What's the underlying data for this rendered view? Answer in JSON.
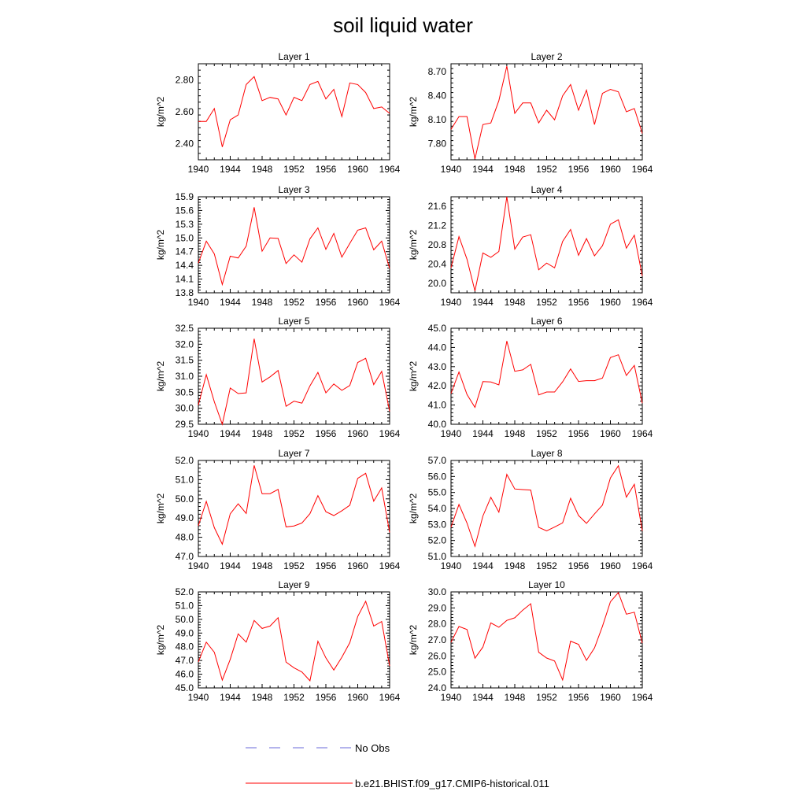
{
  "figure": {
    "title": "soil liquid water"
  },
  "legend": [
    {
      "label": "No Obs",
      "color": "#6a6ad8",
      "style": "dashed"
    },
    {
      "label": "b.e21.BHIST.f09_g17.CMIP6-historical.011",
      "color": "#ff0000",
      "style": "solid"
    }
  ],
  "chart_data": [
    {
      "type": "line",
      "title": "Layer 1",
      "ylabel": "kg/m^2",
      "xlim": [
        1940,
        1964
      ],
      "xticks": [
        1940,
        1944,
        1948,
        1952,
        1956,
        1960,
        1964
      ],
      "ylim": [
        2.3,
        2.9
      ],
      "yticks": [
        2.4,
        2.6,
        2.8
      ],
      "ytick_labels": [
        "2.40",
        "2.60",
        "2.80"
      ],
      "x": [
        1940,
        1941,
        1942,
        1943,
        1944,
        1945,
        1946,
        1947,
        1948,
        1949,
        1950,
        1951,
        1952,
        1953,
        1954,
        1955,
        1956,
        1957,
        1958,
        1959,
        1960,
        1961,
        1962,
        1963,
        1964
      ],
      "series": [
        {
          "name": "b.e21.BHIST.f09_g17.CMIP6-historical.011",
          "color": "#ff0000",
          "values": [
            2.54,
            2.54,
            2.62,
            2.38,
            2.55,
            2.58,
            2.77,
            2.82,
            2.67,
            2.69,
            2.68,
            2.58,
            2.69,
            2.67,
            2.77,
            2.79,
            2.68,
            2.74,
            2.57,
            2.78,
            2.77,
            2.72,
            2.62,
            2.63,
            2.59
          ]
        }
      ]
    },
    {
      "type": "line",
      "title": "Layer 2",
      "ylabel": "kg/m^2",
      "xlim": [
        1940,
        1964
      ],
      "xticks": [
        1940,
        1944,
        1948,
        1952,
        1956,
        1960,
        1964
      ],
      "ylim": [
        7.6,
        8.8
      ],
      "yticks": [
        7.8,
        8.1,
        8.4,
        8.7
      ],
      "ytick_labels": [
        "7.80",
        "8.10",
        "8.40",
        "8.70"
      ],
      "x": [
        1940,
        1941,
        1942,
        1943,
        1944,
        1945,
        1946,
        1947,
        1948,
        1949,
        1950,
        1951,
        1952,
        1953,
        1954,
        1955,
        1956,
        1957,
        1958,
        1959,
        1960,
        1961,
        1962,
        1963,
        1964
      ],
      "series": [
        {
          "name": "b.e21.BHIST.f09_g17.CMIP6-historical.011",
          "color": "#ff0000",
          "values": [
            7.98,
            8.14,
            8.14,
            7.61,
            8.04,
            8.06,
            8.34,
            8.77,
            8.18,
            8.31,
            8.31,
            8.06,
            8.22,
            8.1,
            8.4,
            8.54,
            8.22,
            8.47,
            8.04,
            8.43,
            8.48,
            8.45,
            8.2,
            8.24,
            7.93
          ]
        }
      ]
    },
    {
      "type": "line",
      "title": "Layer 3",
      "ylabel": "kg/m^2",
      "xlim": [
        1940,
        1964
      ],
      "xticks": [
        1940,
        1944,
        1948,
        1952,
        1956,
        1960,
        1964
      ],
      "ylim": [
        13.8,
        15.9
      ],
      "yticks": [
        13.8,
        14.1,
        14.4,
        14.7,
        15.0,
        15.3,
        15.6,
        15.9
      ],
      "ytick_labels": [
        "13.8",
        "14.1",
        "14.4",
        "14.7",
        "15.0",
        "15.3",
        "15.6",
        "15.9"
      ],
      "x": [
        1940,
        1941,
        1942,
        1943,
        1944,
        1945,
        1946,
        1947,
        1948,
        1949,
        1950,
        1951,
        1952,
        1953,
        1954,
        1955,
        1956,
        1957,
        1958,
        1959,
        1960,
        1961,
        1962,
        1963,
        1964
      ],
      "series": [
        {
          "name": "b.e21.BHIST.f09_g17.CMIP6-historical.011",
          "color": "#ff0000",
          "values": [
            14.45,
            14.93,
            14.65,
            13.98,
            14.6,
            14.56,
            14.82,
            15.67,
            14.71,
            15.0,
            14.99,
            14.44,
            14.63,
            14.47,
            14.98,
            15.22,
            14.75,
            15.1,
            14.58,
            14.88,
            15.17,
            15.22,
            14.74,
            14.93,
            14.33
          ]
        }
      ]
    },
    {
      "type": "line",
      "title": "Layer 4",
      "ylabel": "kg/m^2",
      "xlim": [
        1940,
        1964
      ],
      "xticks": [
        1940,
        1944,
        1948,
        1952,
        1956,
        1960,
        1964
      ],
      "ylim": [
        19.8,
        21.8
      ],
      "yticks": [
        20.0,
        20.4,
        20.8,
        21.2,
        21.6
      ],
      "ytick_labels": [
        "20.0",
        "20.4",
        "20.8",
        "21.2",
        "21.6"
      ],
      "x": [
        1940,
        1941,
        1942,
        1943,
        1944,
        1945,
        1946,
        1947,
        1948,
        1949,
        1950,
        1951,
        1952,
        1953,
        1954,
        1955,
        1956,
        1957,
        1958,
        1959,
        1960,
        1961,
        1962,
        1963,
        1964
      ],
      "series": [
        {
          "name": "b.e21.BHIST.f09_g17.CMIP6-historical.011",
          "color": "#ff0000",
          "values": [
            20.32,
            20.97,
            20.5,
            19.84,
            20.63,
            20.54,
            20.66,
            21.8,
            20.71,
            20.96,
            21.01,
            20.28,
            20.42,
            20.32,
            20.87,
            21.12,
            20.58,
            20.93,
            20.57,
            20.78,
            21.23,
            21.32,
            20.73,
            21.0,
            20.15
          ]
        }
      ]
    },
    {
      "type": "line",
      "title": "Layer 5",
      "ylabel": "kg/m^2",
      "xlim": [
        1940,
        1964
      ],
      "xticks": [
        1940,
        1944,
        1948,
        1952,
        1956,
        1960,
        1964
      ],
      "ylim": [
        29.5,
        32.5
      ],
      "yticks": [
        29.5,
        30.0,
        30.5,
        31.0,
        31.5,
        32.0,
        32.5
      ],
      "ytick_labels": [
        "29.5",
        "30.0",
        "30.5",
        "31.0",
        "31.5",
        "32.0",
        "32.5"
      ],
      "x": [
        1940,
        1941,
        1942,
        1943,
        1944,
        1945,
        1946,
        1947,
        1948,
        1949,
        1950,
        1951,
        1952,
        1953,
        1954,
        1955,
        1956,
        1957,
        1958,
        1959,
        1960,
        1961,
        1962,
        1963,
        1964
      ],
      "series": [
        {
          "name": "b.e21.BHIST.f09_g17.CMIP6-historical.011",
          "color": "#ff0000",
          "values": [
            30.1,
            31.05,
            30.2,
            29.5,
            30.63,
            30.46,
            30.48,
            32.17,
            30.82,
            30.98,
            31.18,
            30.06,
            30.22,
            30.16,
            30.7,
            31.12,
            30.48,
            30.76,
            30.56,
            30.71,
            31.43,
            31.56,
            30.74,
            31.15,
            29.9
          ]
        }
      ]
    },
    {
      "type": "line",
      "title": "Layer 6",
      "ylabel": "kg/m^2",
      "xlim": [
        1940,
        1964
      ],
      "xticks": [
        1940,
        1944,
        1948,
        1952,
        1956,
        1960,
        1964
      ],
      "ylim": [
        40.0,
        45.0
      ],
      "yticks": [
        40.0,
        41.0,
        42.0,
        43.0,
        44.0,
        45.0
      ],
      "ytick_labels": [
        "40.0",
        "41.0",
        "42.0",
        "43.0",
        "44.0",
        "45.0"
      ],
      "x": [
        1940,
        1941,
        1942,
        1943,
        1944,
        1945,
        1946,
        1947,
        1948,
        1949,
        1950,
        1951,
        1952,
        1953,
        1954,
        1955,
        1956,
        1957,
        1958,
        1959,
        1960,
        1961,
        1962,
        1963,
        1964
      ],
      "series": [
        {
          "name": "b.e21.BHIST.f09_g17.CMIP6-historical.011",
          "color": "#ff0000",
          "values": [
            41.6,
            42.72,
            41.55,
            40.88,
            42.22,
            42.2,
            42.05,
            44.33,
            42.76,
            42.83,
            43.12,
            41.53,
            41.68,
            41.68,
            42.21,
            42.88,
            42.23,
            42.27,
            42.27,
            42.4,
            43.47,
            43.62,
            42.54,
            43.06,
            41.1
          ]
        }
      ]
    },
    {
      "type": "line",
      "title": "Layer 7",
      "ylabel": "kg/m^2",
      "xlim": [
        1940,
        1964
      ],
      "xticks": [
        1940,
        1944,
        1948,
        1952,
        1956,
        1960,
        1964
      ],
      "ylim": [
        47.0,
        52.0
      ],
      "yticks": [
        47.0,
        48.0,
        49.0,
        50.0,
        51.0,
        52.0
      ],
      "ytick_labels": [
        "47.0",
        "48.0",
        "49.0",
        "50.0",
        "51.0",
        "52.0"
      ],
      "x": [
        1940,
        1941,
        1942,
        1943,
        1944,
        1945,
        1946,
        1947,
        1948,
        1949,
        1950,
        1951,
        1952,
        1953,
        1954,
        1955,
        1956,
        1957,
        1958,
        1959,
        1960,
        1961,
        1962,
        1963,
        1964
      ],
      "series": [
        {
          "name": "b.e21.BHIST.f09_g17.CMIP6-historical.011",
          "color": "#ff0000",
          "values": [
            48.6,
            49.87,
            48.5,
            47.64,
            49.22,
            49.74,
            49.24,
            51.74,
            50.27,
            50.27,
            50.49,
            48.54,
            48.59,
            48.74,
            49.23,
            50.17,
            49.33,
            49.13,
            49.38,
            49.67,
            51.07,
            51.33,
            49.88,
            50.57,
            48.25
          ]
        }
      ]
    },
    {
      "type": "line",
      "title": "Layer 8",
      "ylabel": "kg/m^2",
      "xlim": [
        1940,
        1964
      ],
      "xticks": [
        1940,
        1944,
        1948,
        1952,
        1956,
        1960,
        1964
      ],
      "ylim": [
        51.0,
        57.0
      ],
      "yticks": [
        51.0,
        52.0,
        53.0,
        54.0,
        55.0,
        56.0,
        57.0
      ],
      "ytick_labels": [
        "51.0",
        "52.0",
        "53.0",
        "54.0",
        "55.0",
        "56.0",
        "57.0"
      ],
      "x": [
        1940,
        1941,
        1942,
        1943,
        1944,
        1945,
        1946,
        1947,
        1948,
        1949,
        1950,
        1951,
        1952,
        1953,
        1954,
        1955,
        1956,
        1957,
        1958,
        1959,
        1960,
        1961,
        1962,
        1963,
        1964
      ],
      "series": [
        {
          "name": "b.e21.BHIST.f09_g17.CMIP6-historical.011",
          "color": "#ff0000",
          "values": [
            52.83,
            54.25,
            53.09,
            51.63,
            53.53,
            54.7,
            53.77,
            56.13,
            55.22,
            55.18,
            55.15,
            52.82,
            52.6,
            52.84,
            53.1,
            54.64,
            53.56,
            53.07,
            53.66,
            54.21,
            55.91,
            56.67,
            54.71,
            55.51,
            52.6
          ]
        }
      ]
    },
    {
      "type": "line",
      "title": "Layer 9",
      "ylabel": "kg/m^2",
      "xlim": [
        1940,
        1964
      ],
      "xticks": [
        1940,
        1944,
        1948,
        1952,
        1956,
        1960,
        1964
      ],
      "ylim": [
        45.0,
        52.0
      ],
      "yticks": [
        45.0,
        46.0,
        47.0,
        48.0,
        49.0,
        50.0,
        51.0,
        52.0
      ],
      "ytick_labels": [
        "45.0",
        "46.0",
        "47.0",
        "48.0",
        "49.0",
        "50.0",
        "51.0",
        "52.0"
      ],
      "x": [
        1940,
        1941,
        1942,
        1943,
        1944,
        1945,
        1946,
        1947,
        1948,
        1949,
        1950,
        1951,
        1952,
        1953,
        1954,
        1955,
        1956,
        1957,
        1958,
        1959,
        1960,
        1961,
        1962,
        1963,
        1964
      ],
      "series": [
        {
          "name": "b.e21.BHIST.f09_g17.CMIP6-historical.011",
          "color": "#ff0000",
          "values": [
            46.9,
            48.34,
            47.6,
            45.57,
            47.08,
            48.94,
            48.34,
            49.92,
            49.34,
            49.51,
            50.12,
            46.89,
            46.47,
            46.16,
            45.52,
            48.4,
            47.19,
            46.3,
            47.24,
            48.3,
            50.21,
            51.32,
            49.51,
            49.84,
            46.6
          ]
        }
      ]
    },
    {
      "type": "line",
      "title": "Layer 10",
      "ylabel": "kg/m^2",
      "xlim": [
        1940,
        1964
      ],
      "xticks": [
        1940,
        1944,
        1948,
        1952,
        1956,
        1960,
        1964
      ],
      "ylim": [
        24.0,
        30.0
      ],
      "yticks": [
        24.0,
        25.0,
        26.0,
        27.0,
        28.0,
        29.0,
        30.0
      ],
      "ytick_labels": [
        "24.0",
        "25.0",
        "26.0",
        "27.0",
        "28.0",
        "29.0",
        "30.0"
      ],
      "x": [
        1940,
        1941,
        1942,
        1943,
        1944,
        1945,
        1946,
        1947,
        1948,
        1949,
        1950,
        1951,
        1952,
        1953,
        1954,
        1955,
        1956,
        1957,
        1958,
        1959,
        1960,
        1961,
        1962,
        1963,
        1964
      ],
      "series": [
        {
          "name": "b.e21.BHIST.f09_g17.CMIP6-historical.011",
          "color": "#ff0000",
          "values": [
            26.85,
            27.84,
            27.65,
            25.86,
            26.55,
            28.06,
            27.79,
            28.22,
            28.38,
            28.86,
            29.26,
            26.23,
            25.87,
            25.68,
            24.5,
            26.92,
            26.72,
            25.72,
            26.5,
            27.85,
            29.38,
            29.96,
            28.61,
            28.73,
            26.8
          ]
        }
      ]
    }
  ]
}
